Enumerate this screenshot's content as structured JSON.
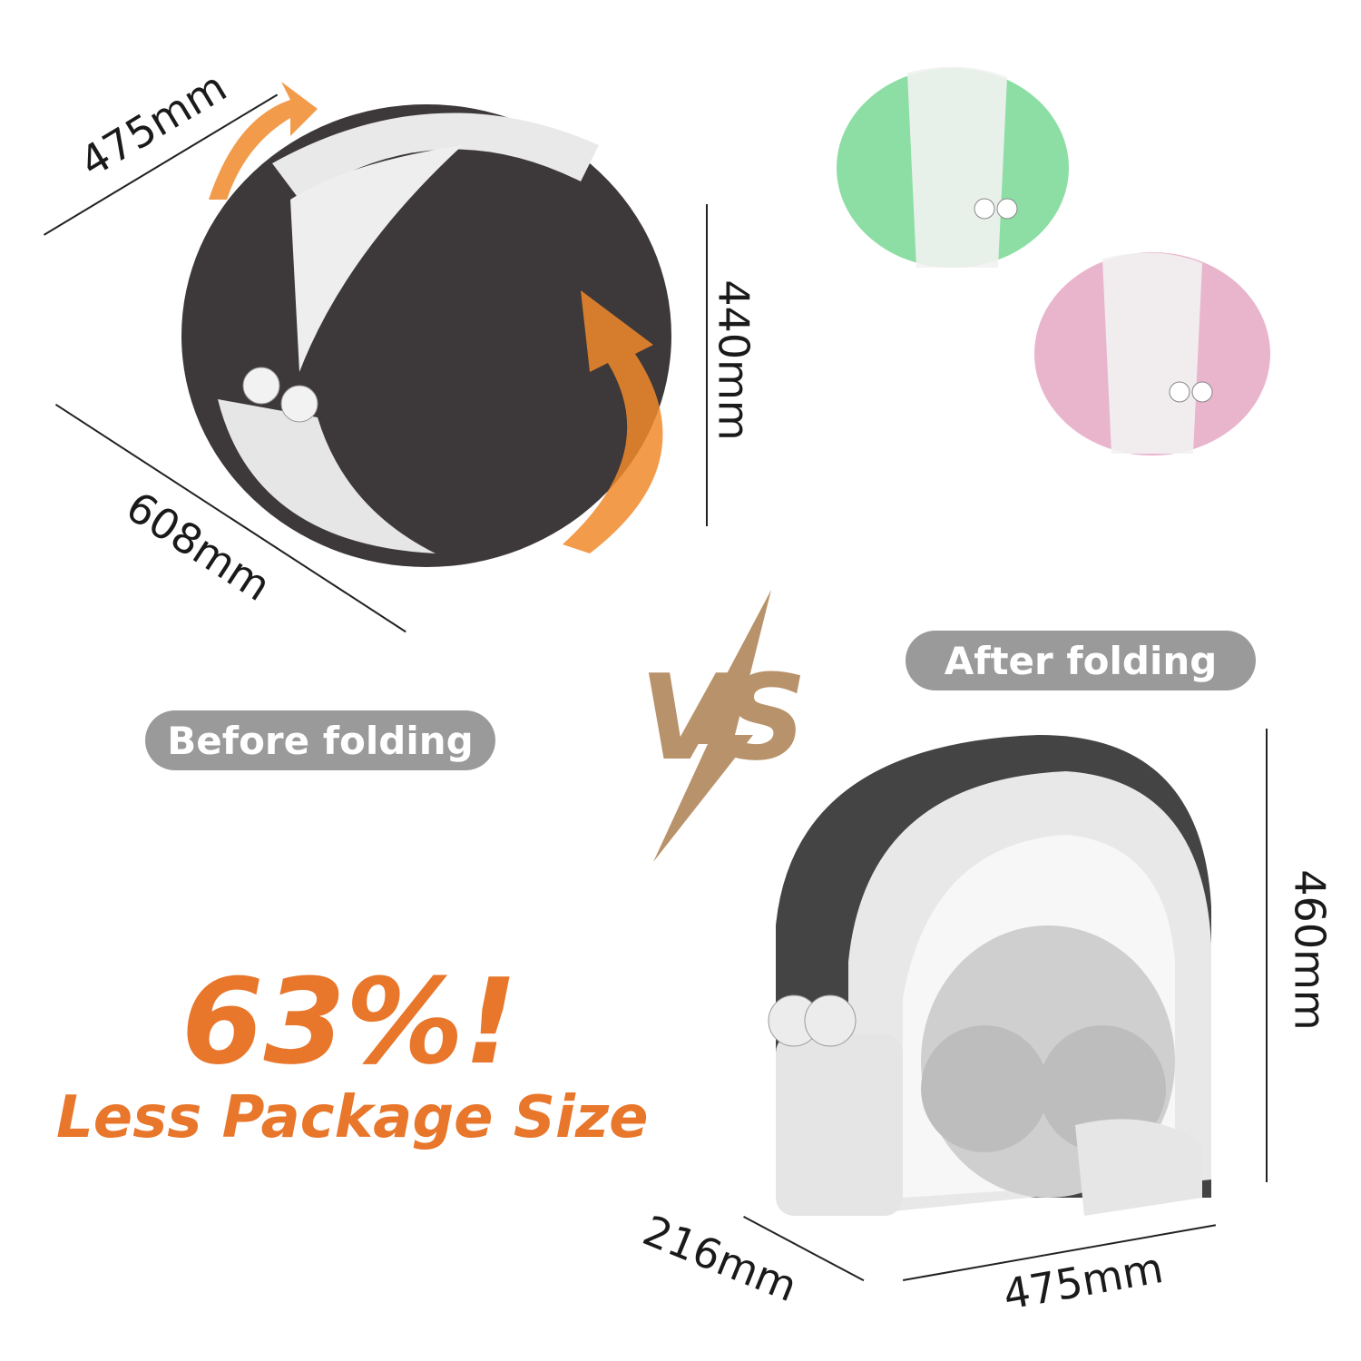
{
  "before": {
    "label": "Before folding",
    "dimensions": {
      "width": "475mm",
      "height": "440mm",
      "length": "608mm"
    }
  },
  "after": {
    "label": "After folding",
    "dimensions": {
      "height": "460mm",
      "depth": "216mm",
      "width": "475mm"
    }
  },
  "vs_label": "VS",
  "headline": {
    "percent": "63%!",
    "subtitle": "Less  Package Size"
  },
  "colors": {
    "accent": "#e8762b",
    "pill": "#9a9a9a",
    "vs": "#b8926a",
    "dome_dark": "#3a3536",
    "dome_green": "#6fd68f",
    "dome_pink": "#e3a3c0"
  }
}
